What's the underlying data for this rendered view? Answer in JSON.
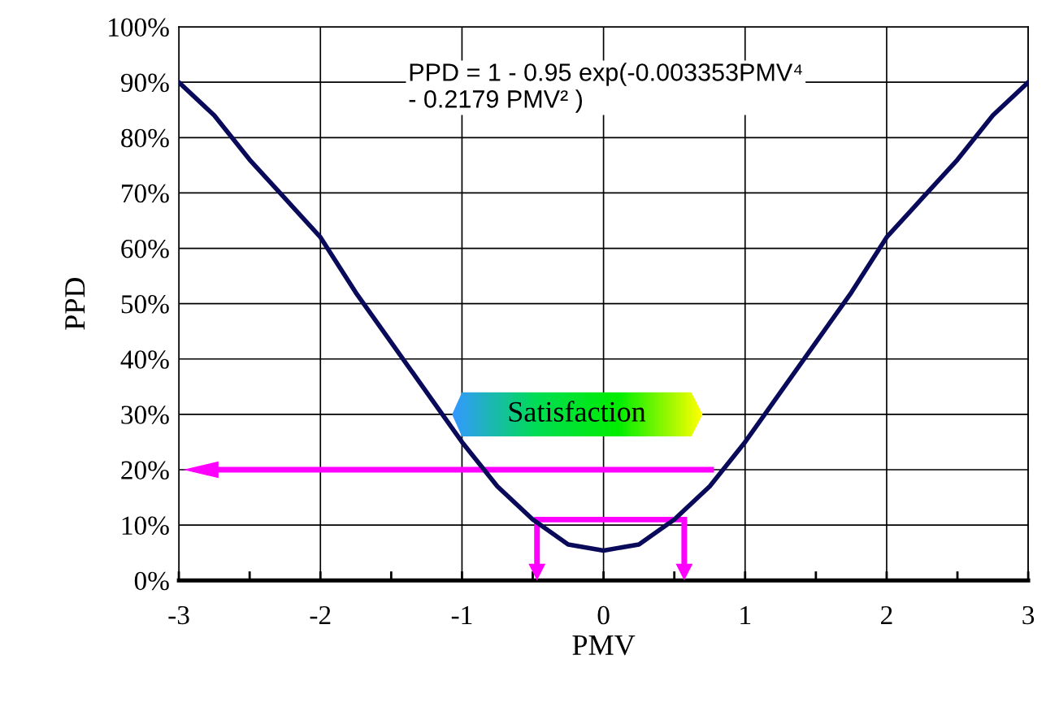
{
  "chart_data": {
    "type": "line",
    "xlabel": "PMV",
    "ylabel": "PPD",
    "x": [
      -3,
      -2.75,
      -2.5,
      -2.25,
      -2,
      -1.75,
      -1.5,
      -1.25,
      -1,
      -0.75,
      -0.5,
      -0.25,
      0,
      0.25,
      0.5,
      0.75,
      1,
      1.25,
      1.5,
      1.75,
      2,
      2.25,
      2.5,
      2.75,
      3
    ],
    "series": [
      {
        "color": "#0a0a5a",
        "values": [
          90,
          84,
          76,
          69,
          62,
          52,
          43,
          34,
          25,
          17,
          11,
          6.5,
          5.4,
          6.5,
          11,
          17,
          25,
          34,
          43,
          52,
          62,
          69,
          76,
          84,
          90
        ]
      }
    ],
    "xlim": [
      -3,
      3
    ],
    "ylim": [
      0,
      100
    ],
    "xticks": [
      -3,
      {
        "value": -2.5,
        "label": null
      },
      -2,
      {
        "value": -1.5,
        "label": null
      },
      -1,
      {
        "value": -0.5,
        "label": null
      },
      0,
      {
        "value": 0.5,
        "label": null
      },
      1,
      {
        "value": 1.5,
        "label": null
      },
      2,
      {
        "value": 2.5,
        "label": null
      },
      3
    ],
    "yticks": [
      {
        "value": 0,
        "label": "0%"
      },
      {
        "value": 10,
        "label": "10%"
      },
      {
        "value": 20,
        "label": "20%"
      },
      {
        "value": 30,
        "label": "30%"
      },
      {
        "value": 40,
        "label": "40%"
      },
      {
        "value": 50,
        "label": "50%"
      },
      {
        "value": 60,
        "label": "60%"
      },
      {
        "value": 70,
        "label": "70%"
      },
      {
        "value": 80,
        "label": "80%"
      },
      {
        "value": 90,
        "label": "90%"
      },
      {
        "value": 100,
        "label": "100%"
      }
    ],
    "grid": true,
    "marker": "none",
    "line_style": "solid",
    "legend": false,
    "annotations": [
      "PPD = 1 - 0.95 exp(-0.003353PMV⁴\n- 0.2179 PMV² )",
      "Satisfaction"
    ]
  }
}
